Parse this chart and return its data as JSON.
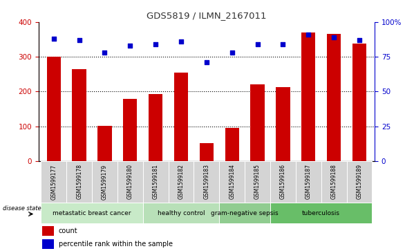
{
  "title": "GDS5819 / ILMN_2167011",
  "samples": [
    "GSM1599177",
    "GSM1599178",
    "GSM1599179",
    "GSM1599180",
    "GSM1599181",
    "GSM1599182",
    "GSM1599183",
    "GSM1599184",
    "GSM1599185",
    "GSM1599186",
    "GSM1599187",
    "GSM1599188",
    "GSM1599189"
  ],
  "counts": [
    300,
    265,
    102,
    178,
    192,
    255,
    52,
    95,
    220,
    213,
    370,
    365,
    338
  ],
  "percentile": [
    88,
    87,
    78,
    83,
    84,
    86,
    71,
    78,
    84,
    84,
    91,
    89,
    87
  ],
  "disease_groups": [
    {
      "label": "metastatic breast cancer",
      "start": 0,
      "end": 4,
      "color": "#c8eac8"
    },
    {
      "label": "healthy control",
      "start": 4,
      "end": 7,
      "color": "#b8e0b8"
    },
    {
      "label": "gram-negative sepsis",
      "start": 7,
      "end": 9,
      "color": "#90cc90"
    },
    {
      "label": "tuberculosis",
      "start": 9,
      "end": 13,
      "color": "#68be68"
    }
  ],
  "bar_color": "#cc0000",
  "dot_color": "#0000cc",
  "ylim_left": [
    0,
    400
  ],
  "ylim_right": [
    0,
    100
  ],
  "yticks_left": [
    0,
    100,
    200,
    300,
    400
  ],
  "yticks_right": [
    0,
    25,
    50,
    75,
    100
  ],
  "yticklabels_right": [
    "0",
    "25",
    "50",
    "75",
    "100%"
  ],
  "grid_values": [
    100,
    200,
    300
  ],
  "left_tick_color": "#cc0000",
  "right_tick_color": "#0000cc",
  "title_color": "#333333",
  "legend_count_color": "#cc0000",
  "legend_dot_color": "#0000cc",
  "sample_bg_color": "#d4d4d4",
  "sample_text_fontsize": 5.5,
  "disease_text_fontsize": 6.5
}
